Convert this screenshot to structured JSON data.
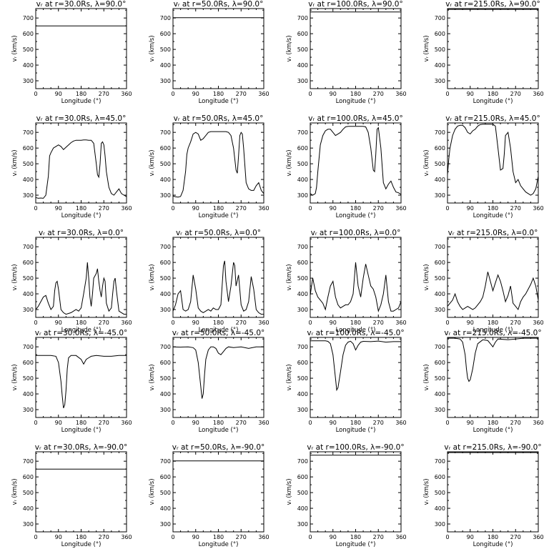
{
  "figure": {
    "x_axis_label": "Longitude (°)",
    "y_axis_label": "vᵣ (km/s)",
    "x_ticks": [
      0,
      90,
      180,
      270,
      360
    ],
    "y_ticks": [
      300,
      400,
      500,
      600,
      700
    ],
    "xlim": [
      0,
      360
    ],
    "ylim": [
      250,
      760
    ]
  },
  "chart_data": [
    {
      "type": "line",
      "title": "vᵣ at r=30.0Rs, λ=90.0°",
      "xlabel": "Longitude (°)",
      "ylabel": "vᵣ (km/s)",
      "xlim": [
        0,
        360
      ],
      "ylim": [
        250,
        760
      ],
      "x": [
        0,
        360
      ],
      "y": [
        650,
        650
      ]
    },
    {
      "type": "line",
      "title": "vᵣ at r=50.0Rs, λ=90.0°",
      "xlabel": "Longitude (°)",
      "ylabel": "vᵣ (km/s)",
      "xlim": [
        0,
        360
      ],
      "ylim": [
        250,
        760
      ],
      "x": [
        0,
        360
      ],
      "y": [
        702,
        702
      ]
    },
    {
      "type": "line",
      "title": "vᵣ at r=100.0Rs, λ=90.0°",
      "xlabel": "Longitude (°)",
      "ylabel": "vᵣ (km/s)",
      "xlim": [
        0,
        360
      ],
      "ylim": [
        250,
        760
      ],
      "x": [
        0,
        360
      ],
      "y": [
        738,
        738
      ]
    },
    {
      "type": "line",
      "title": "vᵣ at r=215.0Rs, λ=90.0°",
      "xlabel": "Longitude (°)",
      "ylabel": "vᵣ (km/s)",
      "xlim": [
        0,
        360
      ],
      "ylim": [
        250,
        760
      ],
      "x": [
        0,
        360
      ],
      "y": [
        755,
        755
      ]
    },
    {
      "type": "line",
      "title": "vᵣ at r=30.0Rs, λ=45.0°",
      "xlabel": "Longitude (°)",
      "ylabel": "vᵣ (km/s)",
      "xlim": [
        0,
        360
      ],
      "ylim": [
        250,
        760
      ],
      "x": [
        0,
        10,
        20,
        30,
        40,
        50,
        55,
        60,
        70,
        80,
        90,
        100,
        110,
        120,
        130,
        140,
        150,
        160,
        170,
        180,
        190,
        200,
        210,
        220,
        230,
        240,
        245,
        250,
        255,
        260,
        265,
        270,
        275,
        280,
        290,
        300,
        310,
        320,
        330,
        340,
        350,
        360
      ],
      "y": [
        285,
        280,
        282,
        280,
        300,
        420,
        550,
        570,
        600,
        610,
        620,
        610,
        590,
        605,
        620,
        635,
        645,
        650,
        650,
        650,
        652,
        652,
        650,
        650,
        630,
        500,
        430,
        415,
        500,
        630,
        640,
        620,
        550,
        450,
        350,
        310,
        300,
        320,
        340,
        310,
        300,
        290
      ]
    },
    {
      "type": "line",
      "title": "vᵣ at r=50.0Rs, λ=45.0°",
      "xlabel": "Longitude (°)",
      "ylabel": "vᵣ (km/s)",
      "xlim": [
        0,
        360
      ],
      "ylim": [
        250,
        760
      ],
      "x": [
        0,
        10,
        20,
        30,
        40,
        50,
        55,
        60,
        70,
        80,
        90,
        100,
        110,
        120,
        130,
        140,
        150,
        160,
        170,
        180,
        190,
        200,
        210,
        220,
        230,
        240,
        250,
        255,
        260,
        265,
        270,
        275,
        280,
        290,
        300,
        310,
        320,
        330,
        340,
        350,
        360
      ],
      "y": [
        295,
        290,
        288,
        292,
        330,
        450,
        560,
        600,
        640,
        690,
        700,
        690,
        650,
        660,
        680,
        700,
        705,
        705,
        705,
        705,
        705,
        705,
        705,
        700,
        680,
        600,
        460,
        440,
        550,
        680,
        700,
        690,
        600,
        380,
        340,
        330,
        330,
        360,
        380,
        330,
        310
      ]
    },
    {
      "type": "line",
      "title": "vᵣ at r=100.0Rs, λ=45.0°",
      "xlabel": "Longitude (°)",
      "ylabel": "vᵣ (km/s)",
      "xlim": [
        0,
        360
      ],
      "ylim": [
        250,
        760
      ],
      "x": [
        0,
        10,
        20,
        25,
        30,
        40,
        50,
        60,
        70,
        80,
        90,
        100,
        110,
        120,
        130,
        140,
        150,
        160,
        170,
        180,
        190,
        200,
        210,
        220,
        230,
        240,
        250,
        255,
        260,
        265,
        270,
        280,
        290,
        300,
        310,
        320,
        330,
        340,
        350,
        360
      ],
      "y": [
        310,
        300,
        310,
        350,
        450,
        620,
        680,
        710,
        720,
        720,
        700,
        680,
        690,
        700,
        720,
        735,
        738,
        738,
        738,
        738,
        738,
        738,
        738,
        735,
        700,
        600,
        460,
        450,
        560,
        720,
        730,
        600,
        380,
        340,
        370,
        390,
        350,
        320,
        315,
        305
      ]
    },
    {
      "type": "line",
      "title": "vᵣ at r=215.0Rs, λ=45.0°",
      "xlabel": "Longitude (°)",
      "ylabel": "vᵣ (km/s)",
      "xlim": [
        0,
        360
      ],
      "ylim": [
        250,
        760
      ],
      "x": [
        0,
        5,
        10,
        20,
        30,
        40,
        50,
        60,
        70,
        80,
        90,
        100,
        110,
        120,
        130,
        140,
        150,
        160,
        170,
        180,
        190,
        200,
        210,
        220,
        225,
        230,
        240,
        250,
        260,
        270,
        280,
        290,
        300,
        310,
        320,
        330,
        340,
        350,
        360
      ],
      "y": [
        430,
        530,
        600,
        680,
        720,
        740,
        745,
        745,
        730,
        700,
        690,
        710,
        720,
        740,
        750,
        752,
        752,
        752,
        752,
        752,
        740,
        600,
        460,
        470,
        560,
        680,
        700,
        600,
        450,
        380,
        400,
        360,
        340,
        320,
        310,
        300,
        310,
        340,
        420
      ]
    },
    {
      "type": "line",
      "title": "vᵣ at r=30.0Rs, λ=0.0°",
      "xlabel": "Longitude (°)",
      "ylabel": "vᵣ (km/s)",
      "xlim": [
        0,
        360
      ],
      "ylim": [
        250,
        760
      ],
      "x": [
        0,
        10,
        20,
        30,
        40,
        50,
        60,
        70,
        75,
        80,
        85,
        90,
        100,
        110,
        120,
        130,
        140,
        150,
        160,
        170,
        180,
        190,
        200,
        205,
        210,
        215,
        220,
        225,
        230,
        240,
        245,
        250,
        255,
        260,
        265,
        270,
        275,
        280,
        290,
        300,
        305,
        310,
        315,
        320,
        330,
        340,
        350,
        360
      ],
      "y": [
        300,
        320,
        350,
        380,
        390,
        340,
        300,
        320,
        420,
        470,
        480,
        430,
        300,
        280,
        270,
        275,
        280,
        290,
        300,
        290,
        310,
        400,
        500,
        600,
        500,
        380,
        320,
        400,
        500,
        530,
        560,
        480,
        420,
        380,
        450,
        500,
        480,
        340,
        290,
        310,
        400,
        480,
        500,
        420,
        290,
        280,
        270,
        270
      ]
    },
    {
      "type": "line",
      "title": "vᵣ at r=50.0Rs, λ=0.0°",
      "xlabel": "Longitude (°)",
      "ylabel": "vᵣ (km/s)",
      "xlim": [
        0,
        360
      ],
      "ylim": [
        250,
        760
      ],
      "x": [
        0,
        10,
        20,
        30,
        40,
        50,
        60,
        70,
        80,
        90,
        100,
        110,
        120,
        130,
        140,
        150,
        160,
        170,
        180,
        190,
        200,
        205,
        210,
        220,
        230,
        240,
        245,
        250,
        260,
        270,
        280,
        290,
        300,
        310,
        320,
        330,
        340,
        350,
        360
      ],
      "y": [
        290,
        330,
        400,
        420,
        300,
        290,
        300,
        350,
        520,
        430,
        310,
        290,
        280,
        290,
        300,
        290,
        310,
        300,
        300,
        330,
        580,
        610,
        480,
        350,
        450,
        600,
        580,
        450,
        520,
        330,
        290,
        300,
        350,
        510,
        430,
        300,
        280,
        270,
        270
      ]
    },
    {
      "type": "line",
      "title": "vᵣ at r=100.0Rs, λ=0.0°",
      "xlabel": "Longitude (°)",
      "ylabel": "vᵣ (km/s)",
      "xlim": [
        0,
        360
      ],
      "ylim": [
        250,
        760
      ],
      "x": [
        0,
        5,
        10,
        20,
        30,
        40,
        50,
        60,
        70,
        80,
        90,
        100,
        110,
        120,
        130,
        140,
        150,
        160,
        170,
        180,
        190,
        200,
        210,
        220,
        230,
        240,
        250,
        260,
        270,
        280,
        290,
        300,
        310,
        320,
        330,
        340,
        350,
        360
      ],
      "y": [
        390,
        450,
        500,
        420,
        380,
        360,
        340,
        300,
        380,
        450,
        480,
        380,
        330,
        310,
        320,
        330,
        330,
        350,
        400,
        600,
        450,
        380,
        500,
        590,
        520,
        450,
        430,
        380,
        290,
        330,
        400,
        520,
        350,
        290,
        290,
        300,
        310,
        350
      ]
    },
    {
      "type": "line",
      "title": "vᵣ at r=215.0Rs, λ=0.0°",
      "xlabel": "Longitude (°)",
      "ylabel": "vᵣ (km/s)",
      "xlim": [
        0,
        360
      ],
      "ylim": [
        250,
        760
      ],
      "x": [
        0,
        10,
        20,
        30,
        40,
        50,
        60,
        70,
        80,
        90,
        100,
        110,
        120,
        130,
        140,
        150,
        160,
        170,
        180,
        190,
        200,
        210,
        220,
        230,
        240,
        250,
        260,
        270,
        280,
        290,
        300,
        310,
        320,
        330,
        340,
        350,
        360
      ],
      "y": [
        320,
        340,
        360,
        400,
        350,
        320,
        300,
        310,
        320,
        310,
        300,
        310,
        330,
        350,
        380,
        450,
        540,
        480,
        420,
        470,
        520,
        480,
        420,
        350,
        390,
        450,
        340,
        320,
        300,
        350,
        380,
        400,
        430,
        460,
        500,
        450,
        360
      ]
    },
    {
      "type": "line",
      "title": "vᵣ at r=30.0Rs, λ=-45.0°",
      "xlabel": "Longitude (°)",
      "ylabel": "vᵣ (km/s)",
      "xlim": [
        0,
        360
      ],
      "ylim": [
        250,
        760
      ],
      "x": [
        0,
        30,
        60,
        80,
        90,
        100,
        105,
        110,
        115,
        120,
        125,
        130,
        140,
        160,
        180,
        190,
        200,
        210,
        220,
        240,
        270,
        300,
        330,
        360
      ],
      "y": [
        645,
        645,
        645,
        640,
        600,
        480,
        390,
        310,
        330,
        420,
        560,
        630,
        645,
        645,
        620,
        590,
        620,
        630,
        640,
        645,
        640,
        640,
        645,
        645
      ]
    },
    {
      "type": "line",
      "title": "vᵣ at r=50.0Rs, λ=-45.0°",
      "xlabel": "Longitude (°)",
      "ylabel": "vᵣ (km/s)",
      "xlim": [
        0,
        360
      ],
      "ylim": [
        250,
        760
      ],
      "x": [
        0,
        30,
        60,
        80,
        90,
        100,
        110,
        115,
        120,
        125,
        130,
        140,
        150,
        160,
        170,
        180,
        190,
        200,
        210,
        220,
        240,
        270,
        300,
        330,
        360
      ],
      "y": [
        700,
        698,
        700,
        695,
        680,
        600,
        450,
        370,
        400,
        520,
        620,
        680,
        700,
        700,
        690,
        660,
        650,
        670,
        690,
        700,
        695,
        700,
        690,
        700,
        700
      ]
    },
    {
      "type": "line",
      "title": "vᵣ at r=100.0Rs, λ=-45.0°",
      "xlabel": "Longitude (°)",
      "ylabel": "vᵣ (km/s)",
      "xlim": [
        0,
        360
      ],
      "ylim": [
        250,
        760
      ],
      "x": [
        0,
        30,
        60,
        70,
        80,
        90,
        100,
        105,
        110,
        120,
        130,
        140,
        150,
        160,
        170,
        180,
        190,
        200,
        210,
        240,
        270,
        300,
        330,
        360
      ],
      "y": [
        738,
        738,
        738,
        735,
        720,
        650,
        500,
        425,
        440,
        540,
        650,
        710,
        730,
        736,
        720,
        680,
        710,
        730,
        735,
        733,
        737,
        730,
        733,
        733
      ]
    },
    {
      "type": "line",
      "title": "vᵣ at r=215.0Rs, λ=-45.0°",
      "xlabel": "Longitude (°)",
      "ylabel": "vᵣ (km/s)",
      "xlim": [
        0,
        360
      ],
      "ylim": [
        250,
        760
      ],
      "x": [
        0,
        30,
        50,
        60,
        70,
        75,
        80,
        85,
        90,
        100,
        110,
        120,
        140,
        160,
        170,
        180,
        190,
        200,
        240,
        270,
        300,
        330,
        360
      ],
      "y": [
        755,
        755,
        750,
        730,
        650,
        560,
        500,
        480,
        490,
        560,
        660,
        720,
        745,
        740,
        720,
        700,
        730,
        750,
        745,
        750,
        755,
        755,
        755
      ]
    },
    {
      "type": "line",
      "title": "vᵣ at r=30.0Rs, λ=-90.0°",
      "xlabel": "Longitude (°)",
      "ylabel": "vᵣ (km/s)",
      "xlim": [
        0,
        360
      ],
      "ylim": [
        250,
        760
      ],
      "x": [
        0,
        360
      ],
      "y": [
        650,
        650
      ]
    },
    {
      "type": "line",
      "title": "vᵣ at r=50.0Rs, λ=-90.0°",
      "xlabel": "Longitude (°)",
      "ylabel": "vᵣ (km/s)",
      "xlim": [
        0,
        360
      ],
      "ylim": [
        250,
        760
      ],
      "x": [
        0,
        360
      ],
      "y": [
        702,
        702
      ]
    },
    {
      "type": "line",
      "title": "vᵣ at r=100.0Rs, λ=-90.0°",
      "xlabel": "Longitude (°)",
      "ylabel": "vᵣ (km/s)",
      "xlim": [
        0,
        360
      ],
      "ylim": [
        250,
        760
      ],
      "x": [
        0,
        360
      ],
      "y": [
        738,
        738
      ]
    },
    {
      "type": "line",
      "title": "vᵣ at r=215.0Rs, λ=-90.0°",
      "xlabel": "Longitude (°)",
      "ylabel": "vᵣ (km/s)",
      "xlim": [
        0,
        360
      ],
      "ylim": [
        250,
        760
      ],
      "x": [
        0,
        360
      ],
      "y": [
        755,
        755
      ]
    }
  ]
}
